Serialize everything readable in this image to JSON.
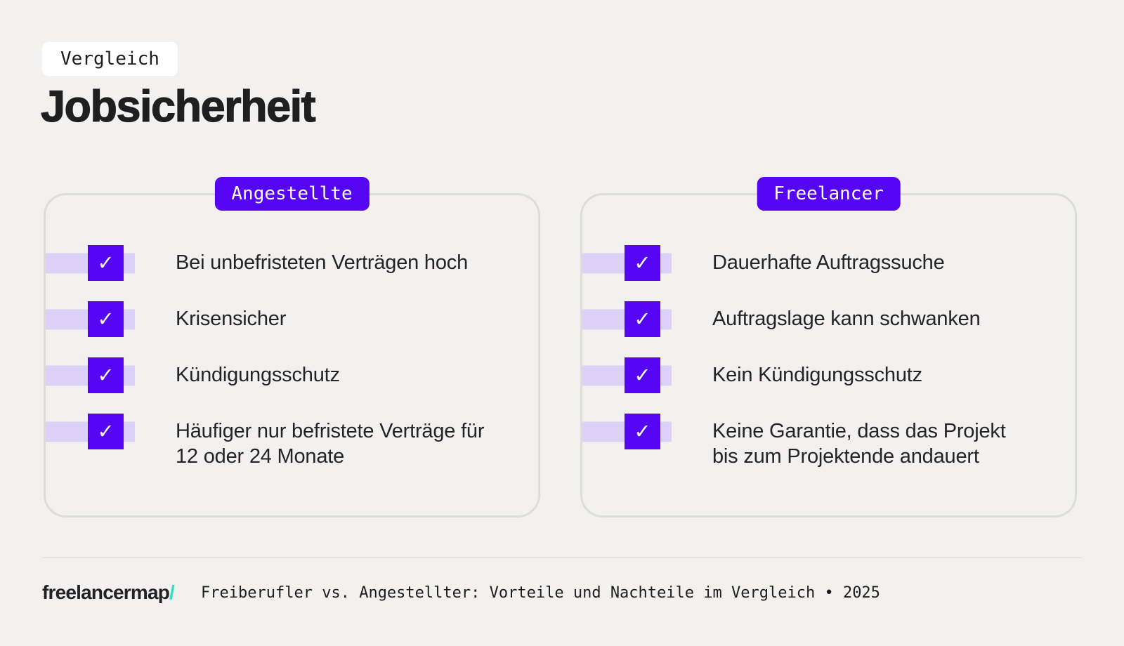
{
  "page": {
    "background_color": "#f2f1ef",
    "accent_color": "#5505f2",
    "stripe_color": "#ddd1fa",
    "card_border_color": "#dcdcdb",
    "logo_slash_color": "#2ce0c2"
  },
  "header": {
    "eyebrow": "Vergleich",
    "title": "Jobsicherheit"
  },
  "icons": {
    "check": "✓"
  },
  "columns": [
    {
      "badge": "Angestellte",
      "items": [
        "Bei unbefristeten Verträgen hoch",
        "Krisensicher",
        "Kündigungsschutz",
        "Häufiger nur befristete Verträge für 12 oder 24 Monate"
      ]
    },
    {
      "badge": "Freelancer",
      "items": [
        "Dauerhafte Auftragssuche",
        "Auftragslage kann schwanken",
        "Kein Kündigungsschutz",
        "Keine Garantie, dass das Projekt bis zum Projektende andauert"
      ]
    }
  ],
  "footer": {
    "logo_text": "freelancermap",
    "logo_slash": "/",
    "caption": "Freiberufler vs. Angestellter: Vorteile und Nachteile im Vergleich • 2025"
  }
}
